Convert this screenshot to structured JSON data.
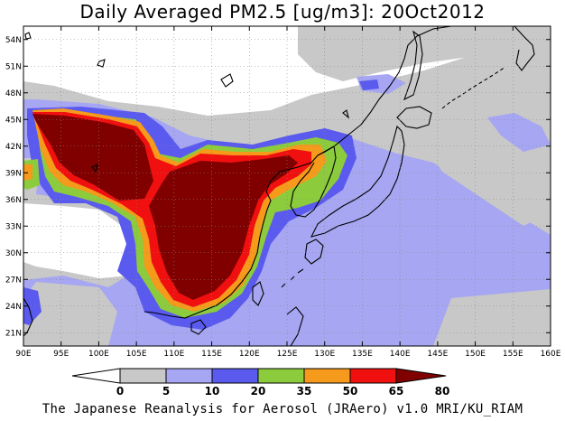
{
  "title": "Daily Averaged PM2.5 [ug/m3]: 20Oct2012",
  "footer": "The Japanese Reanalysis for Aerosol (JRAero) v1.0 MRI/KU_RIAM",
  "map": {
    "lon_range": [
      90,
      160
    ],
    "lat_range": [
      19.5,
      55.5
    ],
    "lon_ticks": [
      "90E",
      "95E",
      "100E",
      "105E",
      "110E",
      "115E",
      "120E",
      "125E",
      "130E",
      "135E",
      "140E",
      "145E",
      "150E",
      "155E",
      "160E"
    ],
    "lat_ticks": [
      "21N",
      "24N",
      "27N",
      "30N",
      "33N",
      "36N",
      "39N",
      "42N",
      "45N",
      "48N",
      "51N",
      "54N"
    ]
  },
  "colorbar": {
    "labels": [
      "0",
      "5",
      "10",
      "20",
      "35",
      "50",
      "65",
      "80"
    ],
    "colors": [
      "#ffffff",
      "#c8c8c8",
      "#a6a6f2",
      "#5a5aef",
      "#8ccc3c",
      "#f59a1a",
      "#f01010",
      "#800000"
    ]
  }
}
